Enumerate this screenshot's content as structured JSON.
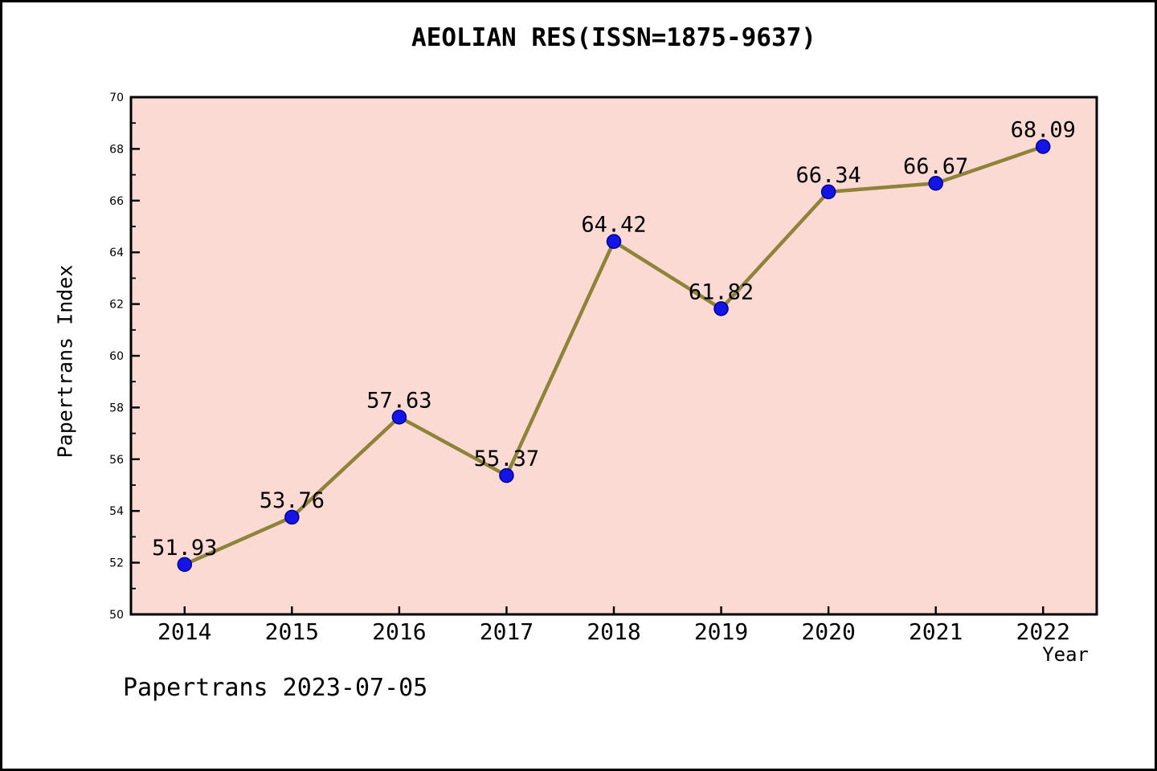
{
  "page": {
    "footer": "Papertrans 2023-07-05"
  },
  "chart_data": {
    "type": "line",
    "title": "AEOLIAN RES(ISSN=1875-9637)",
    "xlabel": "Year",
    "ylabel": "Papertrans Index",
    "x": [
      2014,
      2015,
      2016,
      2017,
      2018,
      2019,
      2020,
      2021,
      2022
    ],
    "values": [
      51.93,
      53.76,
      57.63,
      55.37,
      64.42,
      61.82,
      66.34,
      66.67,
      68.09
    ],
    "point_labels": [
      "51.93",
      "53.76",
      "57.63",
      "55.37",
      "64.42",
      "61.82",
      "66.34",
      "66.67",
      "68.09"
    ],
    "x_tick_labels": [
      "2014",
      "2015",
      "2016",
      "2017",
      "2018",
      "2019",
      "2020",
      "2021",
      "2022"
    ],
    "y_tick_labels": [
      "50",
      "52",
      "54",
      "56",
      "58",
      "60",
      "62",
      "64",
      "66",
      "68",
      "70"
    ],
    "xlim": [
      2013.5,
      2022.5
    ],
    "ylim": [
      50,
      70
    ],
    "y_major_step": 2,
    "y_minor_step": 1,
    "grid": false,
    "legend": null,
    "colors": {
      "plot_bg": "#FBDAD3",
      "line": "#8E8339",
      "marker_fill": "#1414E8",
      "marker_edge": "#00008B",
      "axis": "#000000",
      "text": "#000000"
    }
  }
}
